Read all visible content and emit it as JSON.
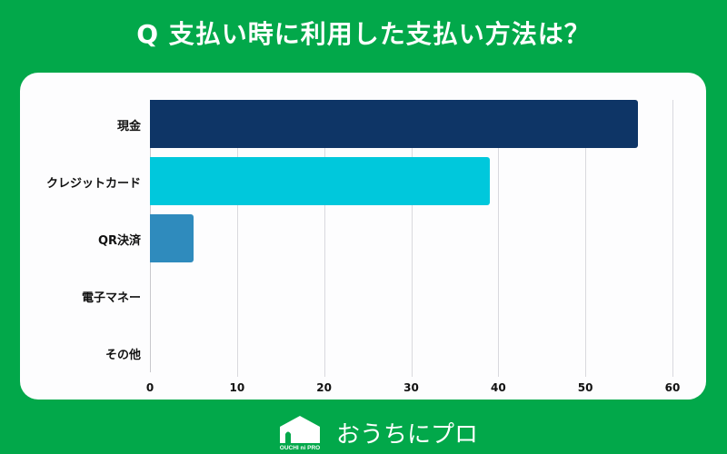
{
  "header": {
    "title": "Q 支払い時に利用した支払い方法は？"
  },
  "footer": {
    "brand": "おうちにプロ",
    "logo_text": "OUCHI ni PRO"
  },
  "colors": {
    "background": "#02a84a",
    "card": "#fdfdfe",
    "bar_cash": "#0e3566",
    "bar_credit": "#00c8dc",
    "bar_qr": "#2f8bbd"
  },
  "chart_data": {
    "type": "bar",
    "orientation": "horizontal",
    "title": "Q 支払い時に利用した支払い方法は？",
    "categories": [
      "現金",
      "クレジットカード",
      "QR決済",
      "電子マネー",
      "その他"
    ],
    "values": [
      56,
      39,
      5,
      0,
      0
    ],
    "xlabel": "",
    "ylabel": "",
    "xlim": [
      0,
      60
    ],
    "xticks": [
      "0",
      "10",
      "20",
      "30",
      "40",
      "50",
      "60"
    ],
    "grid": true,
    "legend": null
  }
}
